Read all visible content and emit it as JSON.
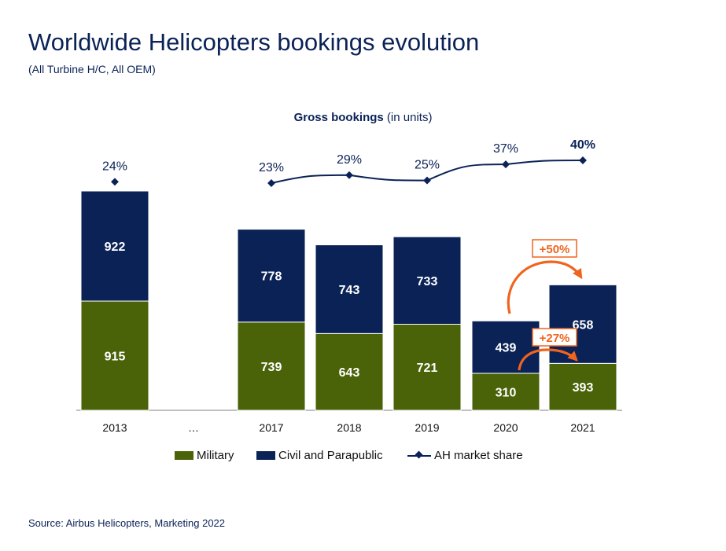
{
  "header": {
    "title": "Worldwide Helicopters bookings evolution",
    "subtitle": "(All Turbine H/C, All OEM)"
  },
  "chart_header": {
    "bold": "Gross bookings",
    "rest": " (in units)"
  },
  "footer": {
    "source": "Source: Airbus Helicopters, Marketing 2022"
  },
  "colors": {
    "military": "#4a6208",
    "civil": "#0b2257",
    "line": "#0b2257",
    "accent": "#f0641e"
  },
  "chart_data": {
    "type": "bar",
    "stacked": true,
    "categories": [
      "2013",
      "…",
      "2017",
      "2018",
      "2019",
      "2020",
      "2021"
    ],
    "series": [
      {
        "name": "Military",
        "values": [
          915,
          null,
          739,
          643,
          721,
          310,
          393
        ]
      },
      {
        "name": "Civil and Parapublic",
        "values": [
          922,
          null,
          778,
          743,
          733,
          439,
          658
        ]
      }
    ],
    "line_series": {
      "name": "AH market share",
      "values": [
        24,
        null,
        23,
        29,
        25,
        37,
        40
      ],
      "labels": [
        "24%",
        "",
        "23%",
        "29%",
        "25%",
        "37%",
        "40%"
      ],
      "bold_index": 6
    },
    "annotations": [
      {
        "text": "+50%",
        "from": "2020",
        "to": "2021",
        "series": "Civil and Parapublic"
      },
      {
        "text": "+27%",
        "from": "2020",
        "to": "2021",
        "series": "Military"
      }
    ],
    "legend": [
      "Military",
      "Civil and Parapublic",
      "AH market share"
    ],
    "legend_position": "bottom"
  }
}
